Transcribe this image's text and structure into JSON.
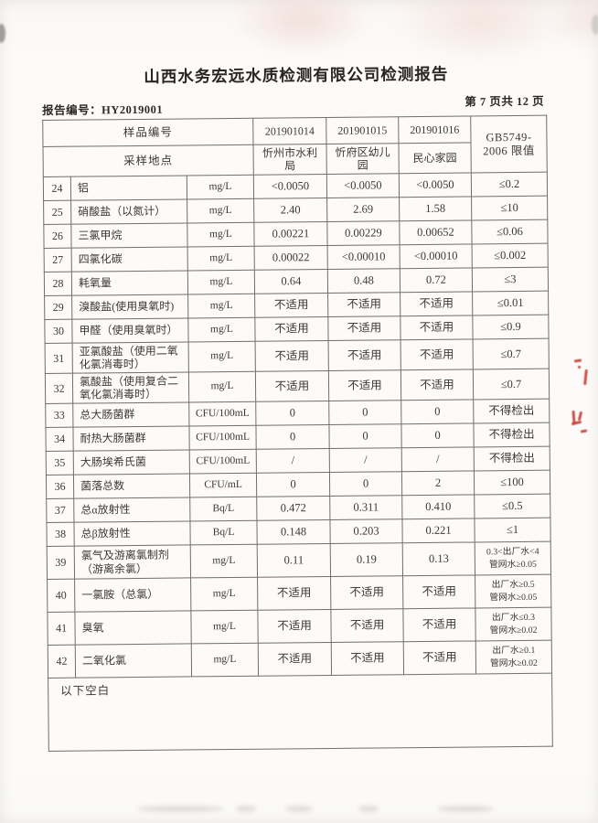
{
  "page": {
    "title": "山西水务宏远水质检测有限公司检测报告",
    "report_no": "报告编号：HY2019001",
    "page_indicator": "第 7 页共 12 页"
  },
  "table": {
    "header": {
      "sample_id_label": "样品编号",
      "location_label": "采样地点",
      "sample_ids": [
        "201901014",
        "201901015",
        "201901016"
      ],
      "locations": [
        "忻州市水利\n局",
        "忻府区幼儿\n园",
        "民心家园"
      ],
      "limit_header": "GB5749-\n2006 限值"
    },
    "rows": [
      {
        "no": "24",
        "name": "铝",
        "unit": "mg/L",
        "values": [
          "<0.0050",
          "<0.0050",
          "<0.0050"
        ],
        "limit": "≤0.2"
      },
      {
        "no": "25",
        "name": "硝酸盐（以氮计）",
        "unit": "mg/L",
        "values": [
          "2.40",
          "2.69",
          "1.58"
        ],
        "limit": "≤10"
      },
      {
        "no": "26",
        "name": "三氯甲烷",
        "unit": "mg/L",
        "values": [
          "0.00221",
          "0.00229",
          "0.00652"
        ],
        "limit": "≤0.06"
      },
      {
        "no": "27",
        "name": "四氯化碳",
        "unit": "mg/L",
        "values": [
          "0.00022",
          "<0.00010",
          "<0.00010"
        ],
        "limit": "≤0.002"
      },
      {
        "no": "28",
        "name": "耗氧量",
        "unit": "mg/L",
        "values": [
          "0.64",
          "0.48",
          "0.72"
        ],
        "limit": "≤3"
      },
      {
        "no": "29",
        "name": "溴酸盐(使用臭氧时)",
        "unit": "mg/L",
        "values": [
          "不适用",
          "不适用",
          "不适用"
        ],
        "limit": "≤0.01"
      },
      {
        "no": "30",
        "name": "甲醛（使用臭氧时）",
        "unit": "mg/L",
        "values": [
          "不适用",
          "不适用",
          "不适用"
        ],
        "limit": "≤0.9"
      },
      {
        "no": "31",
        "name": "亚氯酸盐（使用二氧\n化氯消毒时）",
        "unit": "mg/L",
        "values": [
          "不适用",
          "不适用",
          "不适用"
        ],
        "limit": "≤0.7"
      },
      {
        "no": "32",
        "name": "氯酸盐（使用复合二\n氧化氯消毒时）",
        "unit": "mg/L",
        "values": [
          "不适用",
          "不适用",
          "不适用"
        ],
        "limit": "≤0.7"
      },
      {
        "no": "33",
        "name": "总大肠菌群",
        "unit": "CFU/100mL",
        "values": [
          "0",
          "0",
          "0"
        ],
        "limit": "不得检出"
      },
      {
        "no": "34",
        "name": "耐热大肠菌群",
        "unit": "CFU/100mL",
        "values": [
          "0",
          "0",
          "0"
        ],
        "limit": "不得检出"
      },
      {
        "no": "35",
        "name": "大肠埃希氏菌",
        "unit": "CFU/100mL",
        "values": [
          "/",
          "/",
          "/"
        ],
        "limit": "不得检出"
      },
      {
        "no": "36",
        "name": "菌落总数",
        "unit": "CFU/mL",
        "values": [
          "0",
          "0",
          "2"
        ],
        "limit": "≤100"
      },
      {
        "no": "37",
        "name": "总α放射性",
        "unit": "Bq/L",
        "values": [
          "0.472",
          "0.311",
          "0.410"
        ],
        "limit": "≤0.5"
      },
      {
        "no": "38",
        "name": "总β放射性",
        "unit": "Bq/L",
        "values": [
          "0.148",
          "0.203",
          "0.221"
        ],
        "limit": "≤1"
      },
      {
        "no": "39",
        "name": "氯气及游离氯制剂\n（游离余氯）",
        "unit": "mg/L",
        "values": [
          "0.11",
          "0.19",
          "0.13"
        ],
        "limit": "0.3<出厂水<4\n管网水≥0.05"
      },
      {
        "no": "40",
        "name": "一氯胺（总氯）",
        "unit": "mg/L",
        "values": [
          "不适用",
          "不适用",
          "不适用"
        ],
        "limit": "出厂水≥0.5\n管网水≥0.05"
      },
      {
        "no": "41",
        "name": "臭氧",
        "unit": "mg/L",
        "values": [
          "不适用",
          "不适用",
          "不适用"
        ],
        "limit": "出厂水≤0.3\n管网水≥0.02"
      },
      {
        "no": "42",
        "name": "二氧化氯",
        "unit": "mg/L",
        "values": [
          "不适用",
          "不适用",
          "不适用"
        ],
        "limit": "出厂水≥0.1\n管网水≥0.02"
      }
    ],
    "footer_note": "以下空白"
  },
  "artifacts": {
    "stamp_fragments_color": "#c23530"
  }
}
